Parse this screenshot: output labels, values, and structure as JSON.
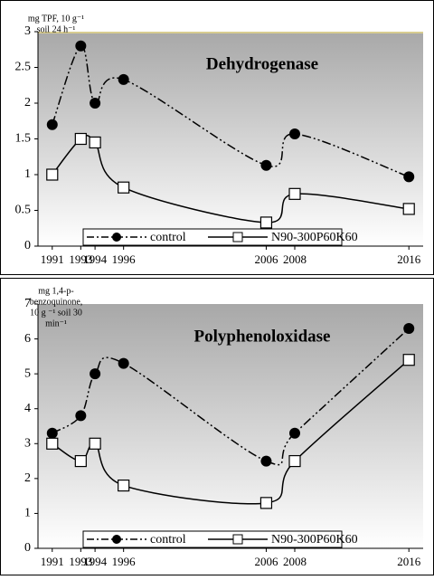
{
  "chart_data": [
    {
      "type": "line",
      "title": "Dehydrogenase",
      "y_label": [
        "mg TPF, 10 g⁻¹",
        "soil 24 h⁻¹"
      ],
      "x": [
        1991,
        1993,
        1994,
        1996,
        2006,
        2008,
        2016
      ],
      "xlim": [
        1990,
        2017
      ],
      "xticks": [
        1991,
        1993,
        1994,
        1996,
        2006,
        2008,
        2016
      ],
      "ylim": [
        0,
        3
      ],
      "yticks": [
        0,
        0.5,
        1,
        1.5,
        2,
        2.5,
        3
      ],
      "series": [
        {
          "name": "control",
          "color": "#000000",
          "values": [
            1.7,
            2.8,
            2.0,
            2.33,
            1.13,
            1.57,
            0.97
          ]
        },
        {
          "name": "N90-300P60K60",
          "color": "#000000",
          "values": [
            1.0,
            1.5,
            1.45,
            0.82,
            0.33,
            0.73,
            0.52
          ]
        }
      ]
    },
    {
      "type": "line",
      "title": "Polyphenoloxidase",
      "y_label": [
        "mg 1,4-p-",
        "benzoquinone,",
        "10 g ⁻¹ soil 30",
        "min⁻¹"
      ],
      "x": [
        1991,
        1993,
        1994,
        1996,
        2006,
        2008,
        2016
      ],
      "xlim": [
        1990,
        2017
      ],
      "xticks": [
        1991,
        1993,
        1994,
        1996,
        2006,
        2008,
        2016
      ],
      "ylim": [
        0,
        7
      ],
      "yticks": [
        0,
        1,
        2,
        3,
        4,
        5,
        6,
        7
      ],
      "series": [
        {
          "name": "control",
          "color": "#000000",
          "values": [
            3.3,
            3.8,
            5.0,
            5.3,
            2.5,
            3.3,
            6.3
          ]
        },
        {
          "name": "N90-300P60K60",
          "color": "#000000",
          "values": [
            3.0,
            2.5,
            3.0,
            1.8,
            1.3,
            2.5,
            5.4
          ]
        }
      ]
    }
  ]
}
